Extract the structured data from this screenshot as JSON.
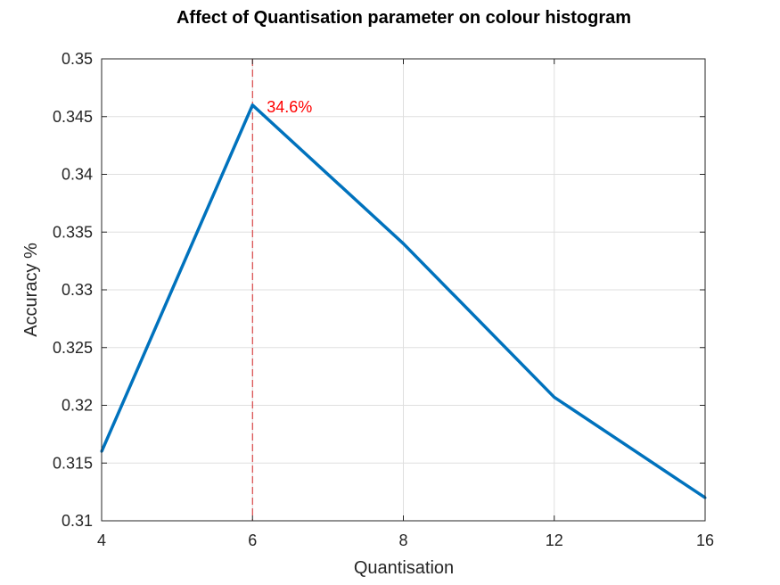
{
  "chart_data": {
    "type": "line",
    "title": "Affect of Quantisation parameter on colour histogram",
    "xlabel": "Quantisation",
    "ylabel": "Accuracy %",
    "categories": [
      "4",
      "6",
      "8",
      "12",
      "16"
    ],
    "series": [
      {
        "values": [
          0.316,
          0.346,
          0.334,
          0.3207,
          0.312
        ],
        "color": "#0072BD"
      }
    ],
    "ylim": [
      0.31,
      0.35
    ],
    "yticks": [
      "0.31",
      "0.315",
      "0.32",
      "0.325",
      "0.33",
      "0.335",
      "0.34",
      "0.345",
      "0.35"
    ],
    "grid": true,
    "marker_line": {
      "category": "6",
      "color": "#d62728",
      "style": "dashed"
    },
    "annotation": {
      "text": "34.6%",
      "category": "6",
      "value": 0.346,
      "color": "#ff0000"
    },
    "axis_color": "#262626",
    "grid_color": "#dfdfdf"
  }
}
